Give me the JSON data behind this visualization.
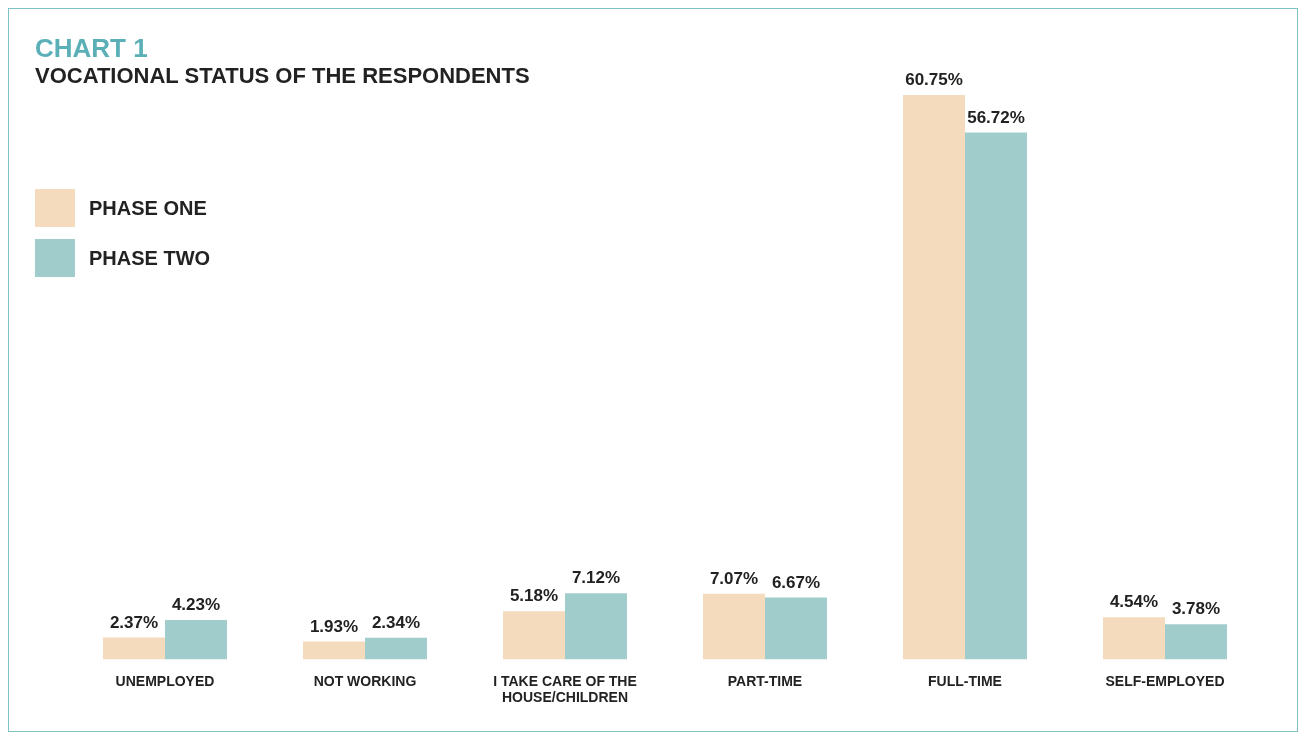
{
  "chart_data": {
    "type": "bar",
    "title": "CHART 1",
    "subtitle": "VOCATIONAL STATUS OF THE RESPONDENTS",
    "categories": [
      "UNEMPLOYED",
      "NOT WORKING",
      "I TAKE CARE OF THE HOUSE/CHILDREN",
      "PART-TIME",
      "FULL-TIME",
      "SELF-EMPLOYED"
    ],
    "series": [
      {
        "name": "PHASE ONE",
        "color": "#f5dbbd",
        "values": [
          2.37,
          1.93,
          5.18,
          7.07,
          60.75,
          4.54
        ],
        "value_labels": [
          "2.37%",
          "1.93%",
          "5.18%",
          "7.07%",
          "60.75%",
          "4.54%"
        ]
      },
      {
        "name": "PHASE TWO",
        "color": "#a0cdcc",
        "values": [
          4.23,
          2.34,
          7.12,
          6.67,
          56.72,
          3.78
        ],
        "value_labels": [
          "4.23%",
          "2.34%",
          "7.12%",
          "6.67%",
          "56.72%",
          "3.78%"
        ]
      }
    ],
    "legend": "top left",
    "grid": false
  }
}
